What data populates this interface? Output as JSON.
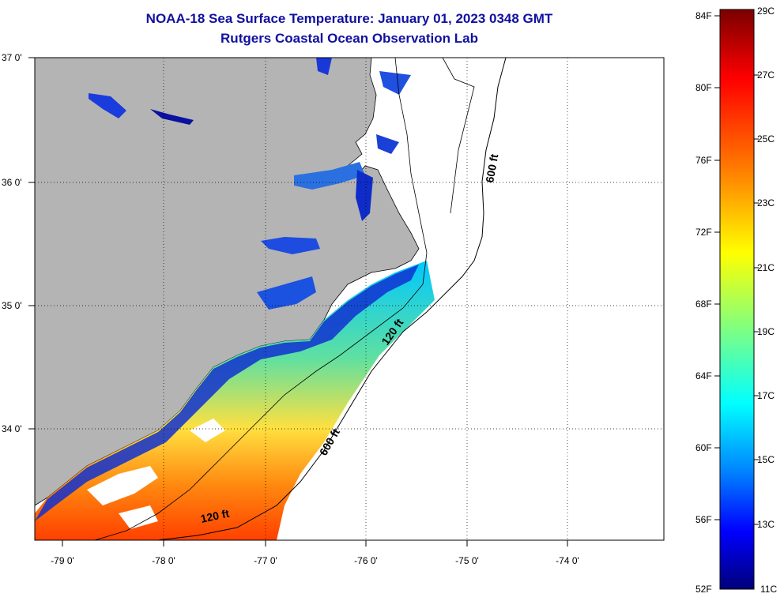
{
  "header": {
    "title": "NOAA-18 Sea Surface Temperature:  January 01, 2023 0348 GMT",
    "subtitle": "Rutgers Coastal Ocean Observation Lab"
  },
  "map": {
    "lon_labels": [
      "-79 0'",
      "-78 0'",
      "-77 0'",
      "-76 0'",
      "-75 0'",
      "-74 0'"
    ],
    "lat_labels": [
      "37 0'",
      "36 0'",
      "35 0'",
      "34 0'"
    ],
    "lon_range": [
      -79.3,
      -73.0
    ],
    "lat_range": [
      33.1,
      37.0
    ],
    "land_color": "#b4b4b4",
    "grid": "dotted",
    "contour_labels": [
      "600 ft",
      "120 ft",
      "600 ft",
      "120 ft"
    ]
  },
  "colorbar": {
    "f_labels": [
      "84F",
      "80F",
      "76F",
      "72F",
      "68F",
      "64F",
      "60F",
      "56F",
      "52F"
    ],
    "c_labels": [
      "29C",
      "27C",
      "25C",
      "23C",
      "21C",
      "19C",
      "17C",
      "15C",
      "13C",
      "11C"
    ],
    "colors_top_to_bottom": [
      "#7a0000",
      "#ff0000",
      "#ff8000",
      "#ffff00",
      "#80ff80",
      "#00ffff",
      "#0080ff",
      "#0000ff",
      "#00007a"
    ]
  }
}
